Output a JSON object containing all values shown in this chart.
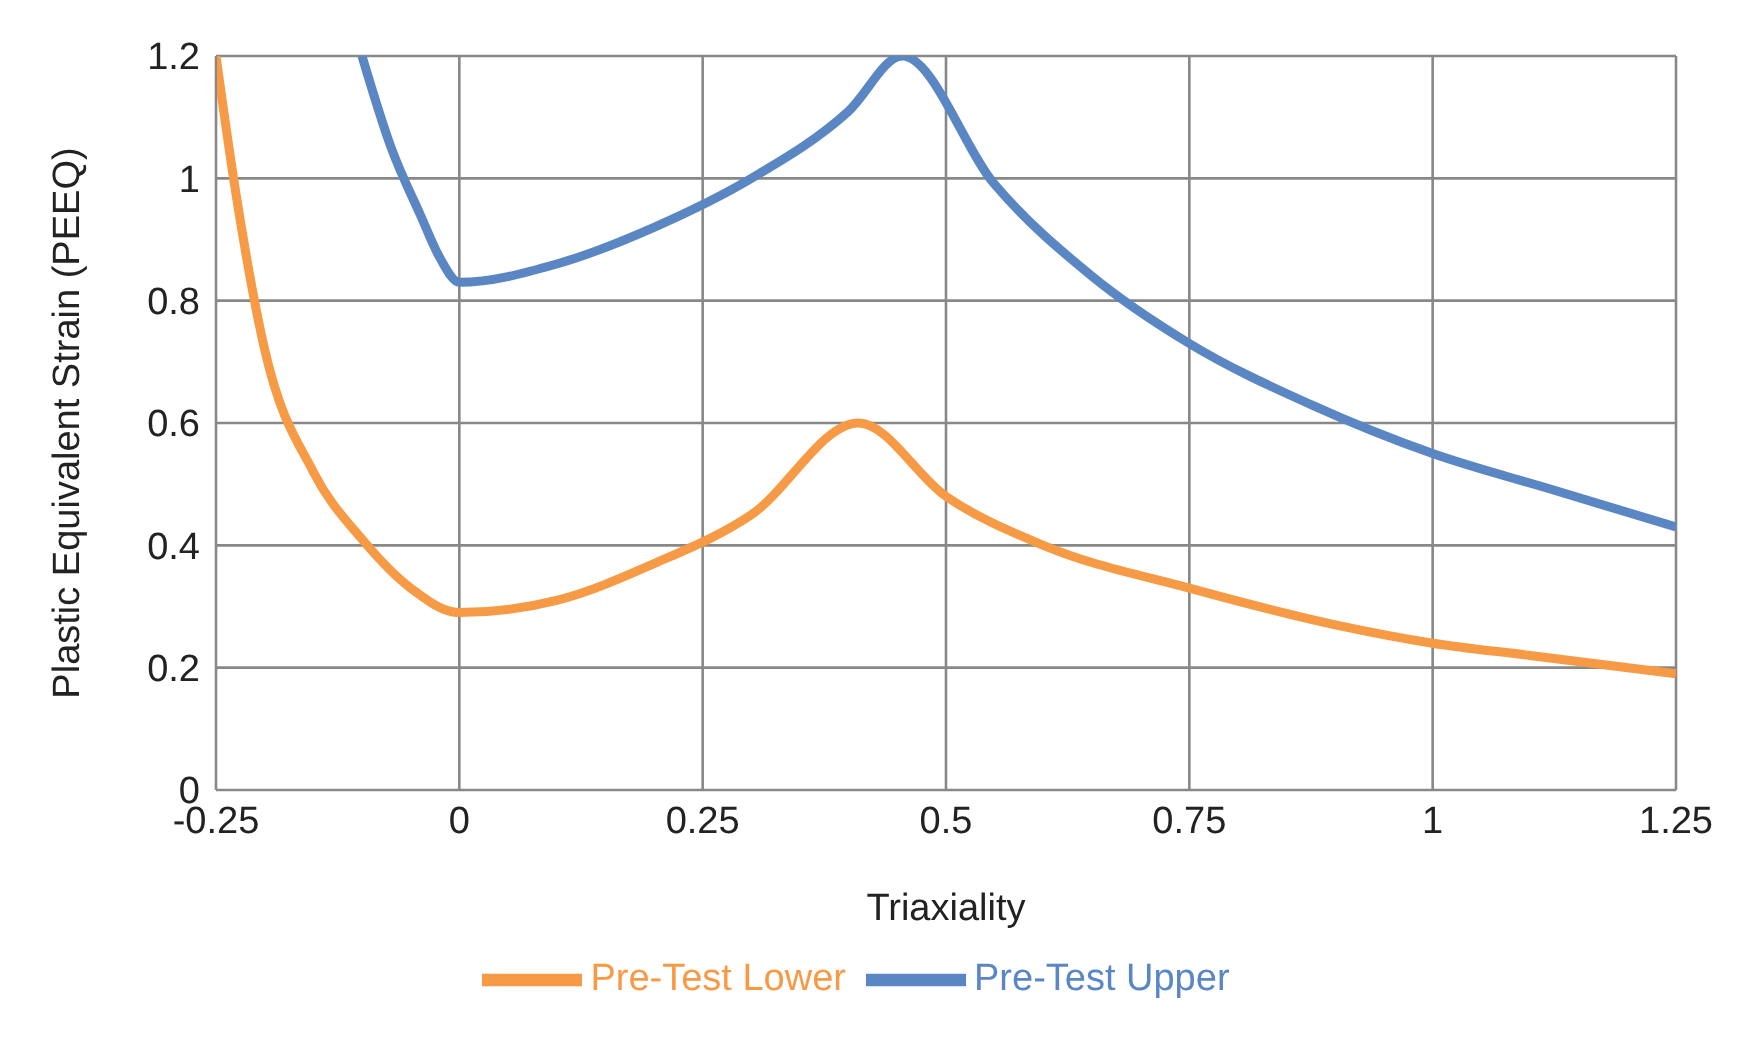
{
  "chart_data": {
    "type": "line",
    "xlabel": "Triaxiality",
    "ylabel": "Plastic Equivalent Strain (PEEQ)",
    "xlim": [
      -0.25,
      1.25
    ],
    "xticks": [
      -0.25,
      0,
      0.25,
      0.5,
      0.75,
      1,
      1.25
    ],
    "ylim": [
      0,
      1.2
    ],
    "yticks": [
      0,
      0.2,
      0.4,
      0.6,
      0.8,
      1,
      1.2
    ],
    "grid": true,
    "legend": "bottom",
    "marker": "none",
    "line_style": "solid",
    "series": [
      {
        "name": "Pre-Test Lower",
        "color": "#f79a46",
        "x": [
          -0.25,
          -0.23,
          -0.2,
          -0.15,
          -0.1,
          -0.05,
          0,
          0.1,
          0.2,
          0.3,
          0.41,
          0.5,
          0.6,
          0.75,
          0.9,
          1,
          1.1,
          1.25
        ],
        "values": [
          1.2,
          0.98,
          0.72,
          0.52,
          0.41,
          0.33,
          0.29,
          0.31,
          0.37,
          0.45,
          0.6,
          0.48,
          0.4,
          0.33,
          0.27,
          0.24,
          0.22,
          0.19
        ]
      },
      {
        "name": "Pre-Test Upper",
        "color": "#5a87c4",
        "x": [
          -0.1,
          -0.07,
          -0.04,
          -0.02,
          0,
          0.1,
          0.2,
          0.3,
          0.4,
          0.455,
          0.55,
          0.65,
          0.75,
          0.875,
          1,
          1.125,
          1.25
        ],
        "values": [
          1.2,
          1.05,
          0.94,
          0.87,
          0.83,
          0.86,
          0.92,
          1.0,
          1.11,
          1.2,
          0.99,
          0.84,
          0.73,
          0.63,
          0.55,
          0.49,
          0.43
        ]
      }
    ]
  }
}
